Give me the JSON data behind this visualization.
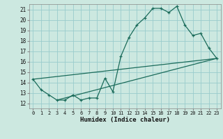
{
  "xlabel": "Humidex (Indice chaleur)",
  "background_color": "#cce8e0",
  "grid_color": "#99cccc",
  "line_color": "#1a6b5a",
  "xlim": [
    -0.5,
    23.5
  ],
  "ylim": [
    11.5,
    21.5
  ],
  "yticks": [
    12,
    13,
    14,
    15,
    16,
    17,
    18,
    19,
    20,
    21
  ],
  "xticks": [
    0,
    1,
    2,
    3,
    4,
    5,
    6,
    7,
    8,
    9,
    10,
    11,
    12,
    13,
    14,
    15,
    16,
    17,
    18,
    19,
    20,
    21,
    22,
    23
  ],
  "line1_x": [
    0,
    1,
    2,
    3,
    4,
    5,
    6,
    7,
    8,
    9,
    10,
    11,
    12,
    13,
    14,
    15,
    16,
    17,
    18,
    19,
    20,
    21,
    22,
    23
  ],
  "line1_y": [
    14.3,
    13.3,
    12.8,
    12.3,
    12.3,
    12.8,
    12.3,
    12.5,
    12.5,
    14.4,
    13.1,
    16.5,
    18.3,
    19.5,
    20.2,
    21.1,
    21.1,
    20.7,
    21.3,
    19.5,
    18.5,
    18.7,
    17.3,
    16.3
  ],
  "line2_x": [
    0,
    23
  ],
  "line2_y": [
    14.3,
    16.3
  ],
  "line3_x": [
    3,
    23
  ],
  "line3_y": [
    12.3,
    16.3
  ]
}
